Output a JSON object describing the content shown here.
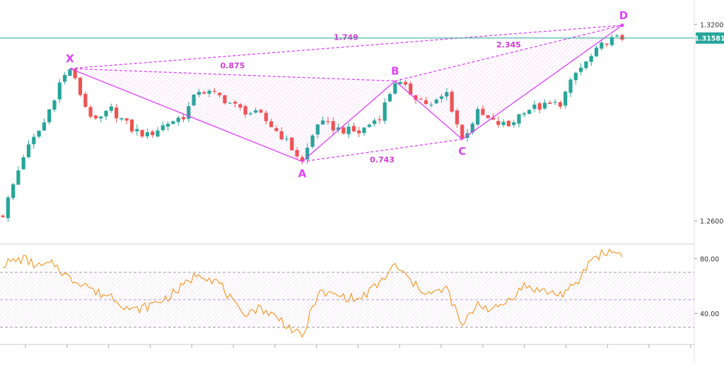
{
  "colors": {
    "up": "#26a69a",
    "down": "#ef5350",
    "wick": "#555555",
    "pattern": "#e040fb",
    "pattern_label": "#d63ad6",
    "rsi_line": "#f7931a",
    "rsi_band": "#e1bee7",
    "price_line": "#26a69a",
    "axis_text": "#333333",
    "separator": "#cccccc"
  },
  "chart_data": [
    {
      "type": "candlestick",
      "title": "",
      "price_axis": {
        "ticks": [
          "1.32000",
          "1.26000"
        ],
        "ylim": [
          1.254,
          1.3257
        ]
      },
      "current_price": "1.31581",
      "pattern": {
        "points": [
          {
            "label": "X",
            "bar": 13,
            "price": 1.3065
          },
          {
            "label": "A",
            "bar": 58,
            "price": 1.2781
          },
          {
            "label": "B",
            "bar": 76,
            "price": 1.3027
          },
          {
            "label": "C",
            "bar": 89,
            "price": 1.2849
          },
          {
            "label": "D",
            "bar": 120,
            "price": 1.3197
          }
        ],
        "ratios": [
          {
            "text": "0.875",
            "between": [
              "X",
              "B"
            ]
          },
          {
            "text": "0.743",
            "between": [
              "A",
              "C"
            ]
          },
          {
            "text": "1.749",
            "between": [
              "X",
              "D"
            ]
          },
          {
            "text": "2.345",
            "between": [
              "B",
              "D"
            ]
          }
        ]
      },
      "anchors": [
        [
          0,
          1.262
        ],
        [
          4,
          1.28
        ],
        [
          8,
          1.29
        ],
        [
          11,
          1.302
        ],
        [
          13,
          1.3065
        ],
        [
          16,
          1.295
        ],
        [
          18,
          1.29
        ],
        [
          21,
          1.294
        ],
        [
          25,
          1.288
        ],
        [
          28,
          1.286
        ],
        [
          32,
          1.29
        ],
        [
          35,
          1.292
        ],
        [
          38,
          1.3
        ],
        [
          42,
          1.298
        ],
        [
          46,
          1.294
        ],
        [
          50,
          1.292
        ],
        [
          54,
          1.286
        ],
        [
          58,
          1.2781
        ],
        [
          61,
          1.29
        ],
        [
          65,
          1.288
        ],
        [
          69,
          1.287
        ],
        [
          73,
          1.292
        ],
        [
          76,
          1.3027
        ],
        [
          80,
          1.298
        ],
        [
          83,
          1.295
        ],
        [
          86,
          1.299
        ],
        [
          89,
          1.2849
        ],
        [
          92,
          1.293
        ],
        [
          95,
          1.29
        ],
        [
          98,
          1.289
        ],
        [
          101,
          1.294
        ],
        [
          105,
          1.295
        ],
        [
          108,
          1.296
        ],
        [
          111,
          1.305
        ],
        [
          114,
          1.31
        ],
        [
          117,
          1.315
        ],
        [
          120,
          1.3158
        ]
      ]
    },
    {
      "type": "line",
      "title": "",
      "rsi_axis": {
        "ticks": [
          "80.00",
          "40.00"
        ],
        "ylim": [
          20,
          88
        ],
        "band": [
          30,
          70
        ],
        "mid": 50
      },
      "anchors": [
        [
          0,
          76
        ],
        [
          4,
          80
        ],
        [
          7,
          74
        ],
        [
          10,
          76
        ],
        [
          13,
          65
        ],
        [
          16,
          62
        ],
        [
          18,
          55
        ],
        [
          21,
          53
        ],
        [
          25,
          42
        ],
        [
          28,
          45
        ],
        [
          32,
          52
        ],
        [
          35,
          60
        ],
        [
          38,
          70
        ],
        [
          42,
          62
        ],
        [
          46,
          40
        ],
        [
          50,
          44
        ],
        [
          54,
          35
        ],
        [
          58,
          22
        ],
        [
          61,
          55
        ],
        [
          65,
          53
        ],
        [
          69,
          50
        ],
        [
          73,
          62
        ],
        [
          76,
          75
        ],
        [
          80,
          60
        ],
        [
          83,
          54
        ],
        [
          86,
          58
        ],
        [
          89,
          30
        ],
        [
          92,
          48
        ],
        [
          95,
          42
        ],
        [
          98,
          50
        ],
        [
          101,
          60
        ],
        [
          105,
          56
        ],
        [
          108,
          54
        ],
        [
          111,
          60
        ],
        [
          114,
          80
        ],
        [
          117,
          85
        ],
        [
          120,
          84
        ]
      ]
    }
  ]
}
